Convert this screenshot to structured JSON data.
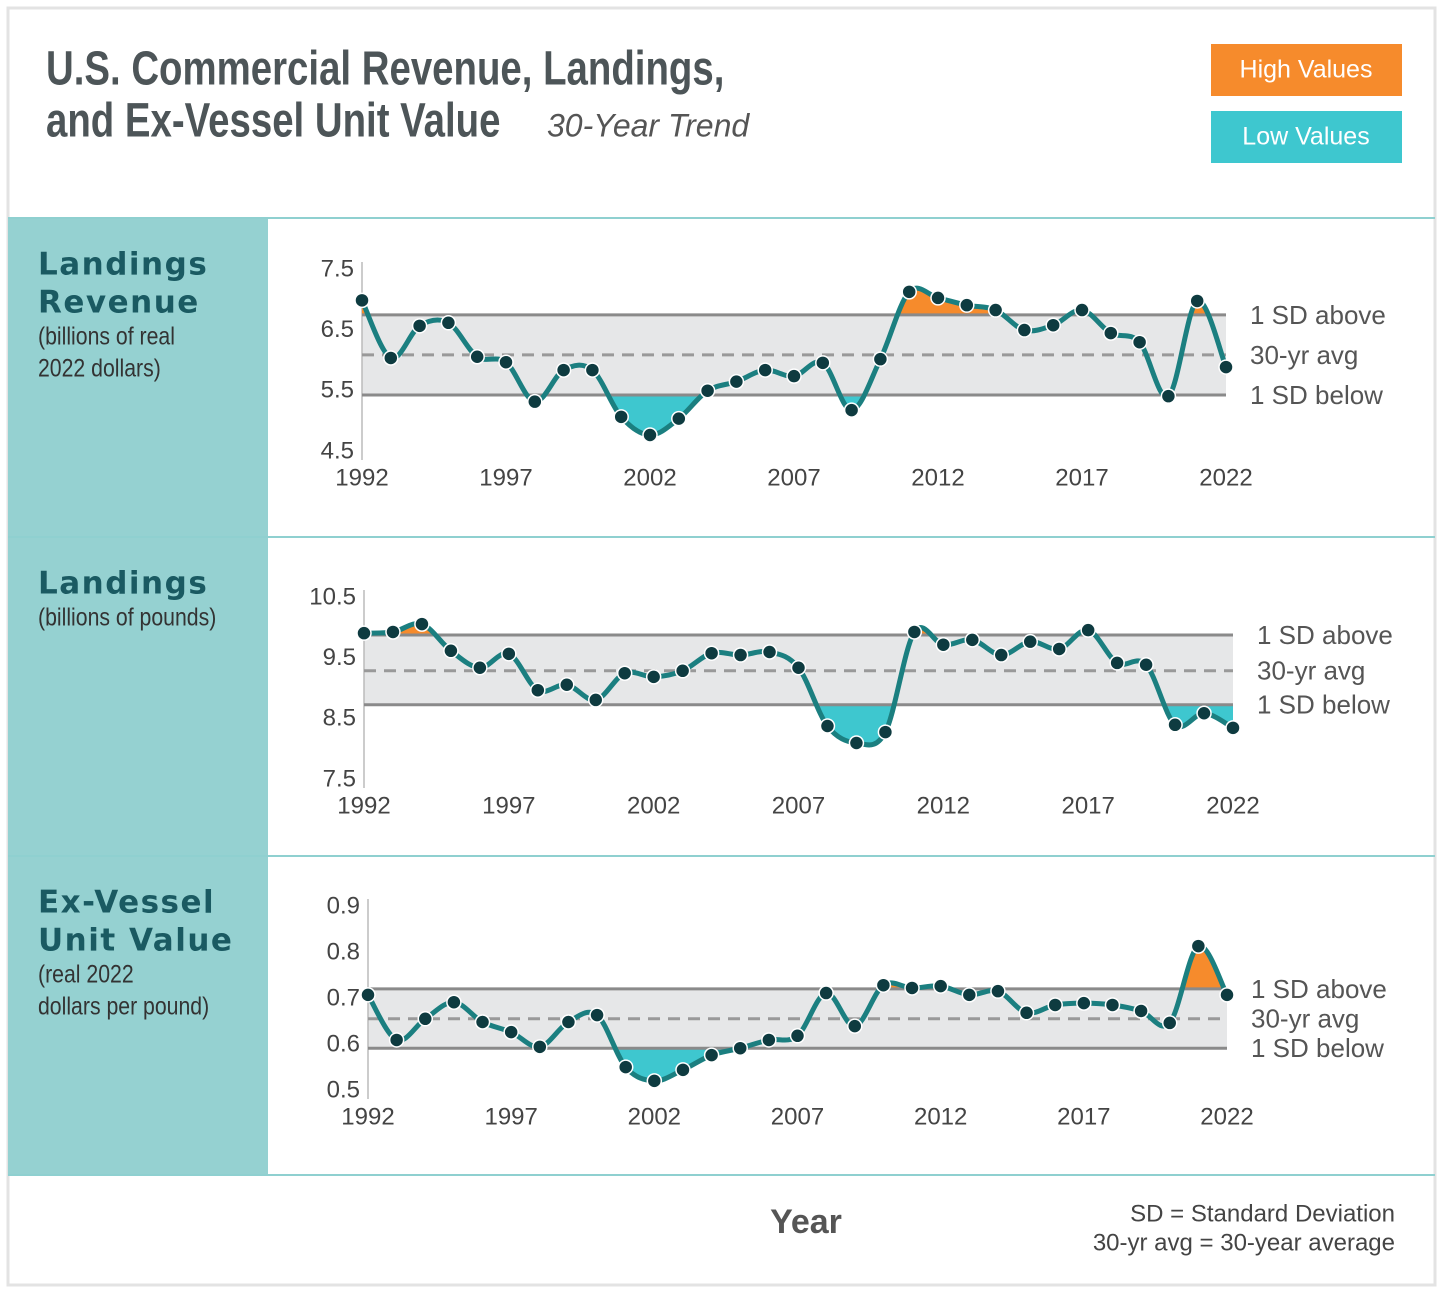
{
  "header": {
    "title_lines": [
      "U.S. Commercial Revenue, Landings,",
      "and Ex-Vessel Unit Value"
    ],
    "subtitle": "30-Year Trend",
    "legend": [
      {
        "label": "High Values",
        "color": "#f68b2c"
      },
      {
        "label": "Low Values",
        "color": "#3ec7cf"
      }
    ]
  },
  "chart_data": [
    {
      "type": "line",
      "title_lines": [
        "Landings",
        "Revenue"
      ],
      "subtitle_lines": [
        "(billions of real",
        "2022 dollars)"
      ],
      "x": [
        1992,
        1993,
        1994,
        1995,
        1996,
        1997,
        1998,
        1999,
        2000,
        2001,
        2002,
        2003,
        2004,
        2005,
        2006,
        2007,
        2008,
        2009,
        2010,
        2011,
        2012,
        2013,
        2014,
        2015,
        2016,
        2017,
        2018,
        2019,
        2020,
        2021,
        2022
      ],
      "values": [
        7.0,
        6.05,
        6.58,
        6.63,
        6.07,
        5.98,
        5.33,
        5.85,
        5.85,
        5.08,
        4.78,
        5.05,
        5.51,
        5.66,
        5.85,
        5.75,
        5.97,
        5.19,
        6.03,
        7.14,
        7.04,
        6.92,
        6.84,
        6.51,
        6.59,
        6.84,
        6.46,
        6.31,
        5.42,
        6.99,
        5.9
      ],
      "xlim": [
        1992,
        2022
      ],
      "xticks": [
        1992,
        1997,
        2002,
        2007,
        2012,
        2017,
        2022
      ],
      "ylim": [
        4.5,
        7.5
      ],
      "yticks": [
        4.5,
        5.5,
        6.5,
        7.5
      ],
      "reference_lines": [
        {
          "label": "1 SD above",
          "value": 6.76
        },
        {
          "label": "30-yr avg",
          "value": 6.1
        },
        {
          "label": "1 SD below",
          "value": 5.44
        }
      ],
      "color": "#1b7f80"
    },
    {
      "type": "line",
      "title_lines": [
        "Landings"
      ],
      "subtitle_lines": [
        "(billions of pounds)"
      ],
      "x": [
        1992,
        1993,
        1994,
        1995,
        1996,
        1997,
        1998,
        1999,
        2000,
        2001,
        2002,
        2003,
        2004,
        2005,
        2006,
        2007,
        2008,
        2009,
        2010,
        2011,
        2012,
        2013,
        2014,
        2015,
        2016,
        2017,
        2018,
        2019,
        2020,
        2021,
        2022
      ],
      "values": [
        9.92,
        9.94,
        10.07,
        9.63,
        9.35,
        9.58,
        8.98,
        9.07,
        8.82,
        9.26,
        9.2,
        9.3,
        9.59,
        9.56,
        9.61,
        9.35,
        8.39,
        8.11,
        8.29,
        9.94,
        9.73,
        9.81,
        9.56,
        9.78,
        9.66,
        9.97,
        9.43,
        9.4,
        8.41,
        8.6,
        8.36
      ],
      "xlim": [
        1992,
        2022
      ],
      "xticks": [
        1992,
        1997,
        2002,
        2007,
        2012,
        2017,
        2022
      ],
      "ylim": [
        7.5,
        10.5
      ],
      "yticks": [
        7.5,
        8.5,
        9.5,
        10.5
      ],
      "reference_lines": [
        {
          "label": "1 SD above",
          "value": 9.89
        },
        {
          "label": "30-yr avg",
          "value": 9.3
        },
        {
          "label": "1 SD below",
          "value": 8.74
        }
      ],
      "color": "#1b7f80"
    },
    {
      "type": "line",
      "title_lines": [
        "Ex-Vessel",
        "Unit Value"
      ],
      "subtitle_lines": [
        "(real 2022",
        "dollars per pound)"
      ],
      "x": [
        1992,
        1993,
        1994,
        1995,
        1996,
        1997,
        1998,
        1999,
        2000,
        2001,
        2002,
        2003,
        2004,
        2005,
        2006,
        2007,
        2008,
        2009,
        2010,
        2011,
        2012,
        2013,
        2014,
        2015,
        2016,
        2017,
        2018,
        2019,
        2020,
        2021,
        2022
      ],
      "values": [
        0.709,
        0.611,
        0.657,
        0.693,
        0.65,
        0.628,
        0.596,
        0.65,
        0.665,
        0.552,
        0.522,
        0.546,
        0.578,
        0.593,
        0.611,
        0.62,
        0.713,
        0.641,
        0.73,
        0.724,
        0.728,
        0.709,
        0.717,
        0.67,
        0.687,
        0.691,
        0.687,
        0.674,
        0.648,
        0.815,
        0.709
      ],
      "xlim": [
        1992,
        2022
      ],
      "xticks": [
        1992,
        1997,
        2002,
        2007,
        2012,
        2017,
        2022
      ],
      "ylim": [
        0.5,
        0.9
      ],
      "yticks": [
        0.5,
        0.6,
        0.7,
        0.8,
        0.9
      ],
      "reference_lines": [
        {
          "label": "1 SD above",
          "value": 0.722
        },
        {
          "label": "30-yr avg",
          "value": 0.657
        },
        {
          "label": "1 SD below",
          "value": 0.593
        }
      ],
      "color": "#1b7f80"
    }
  ],
  "footer": {
    "xlabel": "Year",
    "notes": [
      "SD = Standard Deviation",
      "30-yr avg = 30-year average"
    ]
  }
}
